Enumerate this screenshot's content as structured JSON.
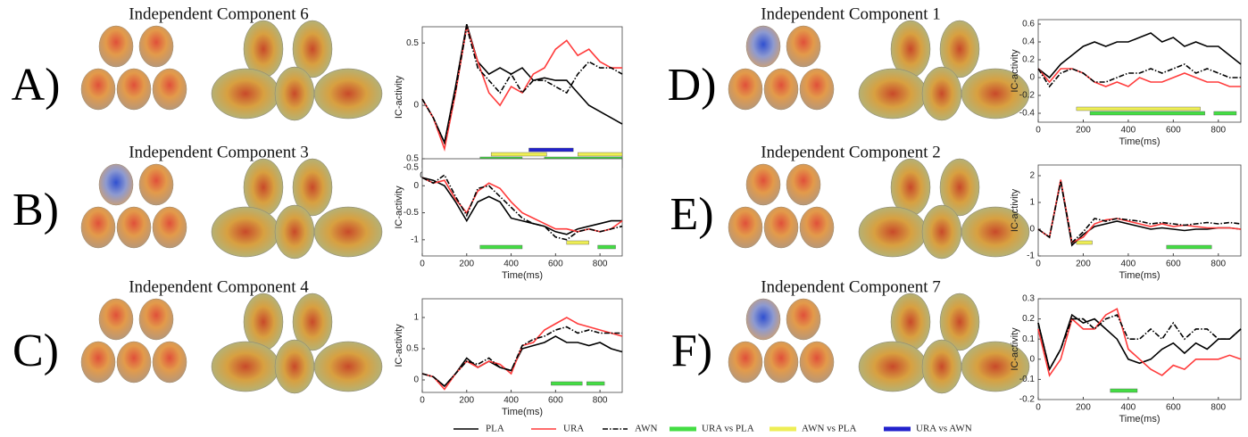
{
  "chart_data": [
    {
      "type": "line",
      "label": "A)",
      "title": "Independent Component 6",
      "xlabel": "Time(ms)",
      "ylabel": "IC-activity",
      "x": [
        0,
        50,
        100,
        150,
        200,
        250,
        300,
        350,
        400,
        450,
        500,
        550,
        600,
        650,
        700,
        750,
        800,
        850,
        900
      ],
      "xlim": [
        0,
        900
      ],
      "xticks": [
        0,
        200,
        400,
        600,
        800
      ],
      "ylim": [
        -0.5,
        0.63
      ],
      "yticks": [
        -0.5,
        0,
        0.5
      ],
      "series": [
        {
          "values": [
            0.05,
            -0.1,
            -0.3,
            0.15,
            0.65,
            0.35,
            0.25,
            0.3,
            0.25,
            0.3,
            0.2,
            0.22,
            0.2,
            0.2,
            0.1,
            0.0,
            -0.05,
            -0.1,
            -0.15
          ]
        },
        {
          "values": [
            0.05,
            -0.1,
            -0.35,
            0.1,
            0.63,
            0.35,
            0.1,
            0.0,
            0.15,
            0.1,
            0.25,
            0.3,
            0.45,
            0.52,
            0.4,
            0.45,
            0.35,
            0.3,
            0.3
          ]
        },
        {
          "values": [
            0.05,
            -0.1,
            -0.3,
            0.12,
            0.63,
            0.3,
            0.2,
            0.1,
            0.25,
            0.1,
            0.2,
            0.2,
            0.15,
            0.1,
            0.25,
            0.35,
            0.3,
            0.3,
            0.25
          ]
        }
      ],
      "intervals": [
        [
          [
            260,
            450
          ],
          [
            550,
            900
          ]
        ],
        [
          [
            310,
            560
          ],
          [
            700,
            900
          ]
        ],
        [
          [
            480,
            680
          ]
        ]
      ]
    },
    {
      "type": "line",
      "label": "B)",
      "title": "Independent Component 3",
      "xlabel": "Time(ms)",
      "ylabel": "IC-activity",
      "x": [
        0,
        50,
        100,
        150,
        200,
        250,
        300,
        350,
        400,
        450,
        500,
        550,
        600,
        650,
        700,
        750,
        800,
        850,
        900
      ],
      "xlim": [
        0,
        900
      ],
      "xticks": [
        0,
        200,
        400,
        600,
        800
      ],
      "ylim": [
        -1.3,
        0.5
      ],
      "yticks": [
        -1,
        -0.5,
        0,
        0.5
      ],
      "series": [
        {
          "values": [
            0.15,
            0.1,
            0.0,
            -0.3,
            -0.65,
            -0.3,
            -0.2,
            -0.3,
            -0.6,
            -0.65,
            -0.7,
            -0.75,
            -0.85,
            -0.9,
            -0.8,
            -0.75,
            -0.7,
            -0.65,
            -0.65
          ]
        },
        {
          "values": [
            0.15,
            0.05,
            0.1,
            -0.25,
            -0.5,
            -0.1,
            0.05,
            -0.05,
            -0.3,
            -0.5,
            -0.6,
            -0.7,
            -0.8,
            -0.8,
            -0.85,
            -0.8,
            -0.85,
            -0.8,
            -0.65
          ]
        },
        {
          "values": [
            0.15,
            0.05,
            0.2,
            -0.2,
            -0.55,
            -0.05,
            0.0,
            -0.2,
            -0.4,
            -0.6,
            -0.7,
            -0.75,
            -0.95,
            -1.0,
            -0.85,
            -0.8,
            -0.85,
            -0.8,
            -0.75
          ]
        }
      ],
      "intervals": [
        [
          [
            260,
            450
          ],
          [
            790,
            870
          ]
        ],
        [
          [
            650,
            750
          ]
        ],
        []
      ]
    },
    {
      "type": "line",
      "label": "C)",
      "title": "Independent Component 4",
      "xlabel": "Time(ms)",
      "ylabel": "IC-activity",
      "x": [
        0,
        50,
        100,
        150,
        200,
        250,
        300,
        350,
        400,
        450,
        500,
        550,
        600,
        650,
        700,
        750,
        800,
        850,
        900
      ],
      "xlim": [
        0,
        900
      ],
      "xticks": [
        0,
        200,
        400,
        600,
        800
      ],
      "ylim": [
        -0.2,
        1.3
      ],
      "yticks": [
        0,
        0.5,
        1
      ],
      "series": [
        {
          "values": [
            0.1,
            0.05,
            -0.1,
            0.1,
            0.35,
            0.2,
            0.3,
            0.2,
            0.15,
            0.5,
            0.55,
            0.6,
            0.7,
            0.6,
            0.6,
            0.55,
            0.6,
            0.5,
            0.45
          ]
        },
        {
          "values": [
            0.1,
            0.05,
            -0.15,
            0.1,
            0.3,
            0.2,
            0.3,
            0.25,
            0.1,
            0.55,
            0.6,
            0.8,
            0.9,
            1.0,
            0.9,
            0.85,
            0.8,
            0.75,
            0.7
          ]
        },
        {
          "values": [
            0.1,
            0.05,
            -0.1,
            0.1,
            0.3,
            0.25,
            0.35,
            0.2,
            0.15,
            0.55,
            0.65,
            0.7,
            0.8,
            0.85,
            0.75,
            0.8,
            0.75,
            0.75,
            0.75
          ]
        }
      ],
      "intervals": [
        [
          [
            580,
            720
          ],
          [
            740,
            820
          ]
        ],
        [],
        []
      ]
    },
    {
      "type": "line",
      "label": "D)",
      "title": "Independent Component 1",
      "xlabel": "Time(ms)",
      "ylabel": "IC-activity",
      "x": [
        0,
        50,
        100,
        150,
        200,
        250,
        300,
        350,
        400,
        450,
        500,
        550,
        600,
        650,
        700,
        750,
        800,
        850,
        900
      ],
      "xlim": [
        0,
        900
      ],
      "xticks": [
        0,
        200,
        400,
        600,
        800
      ],
      "ylim": [
        -0.5,
        0.65
      ],
      "yticks": [
        -0.4,
        -0.2,
        0,
        0.2,
        0.4,
        0.6
      ],
      "series": [
        {
          "values": [
            0.1,
            0.0,
            0.15,
            0.25,
            0.35,
            0.4,
            0.35,
            0.4,
            0.4,
            0.45,
            0.5,
            0.4,
            0.45,
            0.35,
            0.4,
            0.35,
            0.35,
            0.25,
            0.15
          ]
        },
        {
          "values": [
            0.1,
            -0.05,
            0.1,
            0.1,
            0.05,
            -0.05,
            -0.1,
            -0.05,
            -0.1,
            0.0,
            -0.05,
            -0.05,
            0.0,
            0.05,
            0.0,
            -0.05,
            -0.05,
            -0.1,
            -0.1
          ]
        },
        {
          "values": [
            0.1,
            -0.1,
            0.05,
            0.1,
            0.05,
            -0.05,
            -0.05,
            0.0,
            0.05,
            0.05,
            0.1,
            0.05,
            0.1,
            0.15,
            0.05,
            0.1,
            0.05,
            0.0,
            0.0
          ]
        }
      ],
      "intervals": [
        [
          [
            230,
            740
          ],
          [
            780,
            880
          ]
        ],
        [
          [
            170,
            720
          ]
        ],
        []
      ]
    },
    {
      "type": "line",
      "label": "E)",
      "title": "Independent Component 2",
      "xlabel": "Time(ms)",
      "ylabel": "IC-activity",
      "x": [
        0,
        50,
        100,
        150,
        200,
        250,
        300,
        350,
        400,
        450,
        500,
        550,
        600,
        650,
        700,
        750,
        800,
        850,
        900
      ],
      "xlim": [
        0,
        900
      ],
      "xticks": [
        0,
        200,
        400,
        600,
        800
      ],
      "ylim": [
        -1,
        2.4
      ],
      "yticks": [
        -1,
        0,
        1,
        2
      ],
      "series": [
        {
          "values": [
            0,
            -0.3,
            1.8,
            -0.6,
            -0.2,
            0.1,
            0.2,
            0.3,
            0.2,
            0.1,
            0.0,
            0.05,
            0.0,
            -0.05,
            0.0,
            0.0,
            0.05,
            0.05,
            0.0
          ]
        },
        {
          "values": [
            0,
            -0.3,
            1.85,
            -0.5,
            -0.3,
            0.2,
            0.35,
            0.4,
            0.3,
            0.2,
            0.1,
            0.2,
            0.1,
            0.15,
            0.1,
            0.05,
            0.05,
            0.05,
            0.0
          ]
        },
        {
          "values": [
            0,
            -0.3,
            1.8,
            -0.5,
            -0.1,
            0.4,
            0.3,
            0.4,
            0.35,
            0.3,
            0.2,
            0.25,
            0.2,
            0.15,
            0.2,
            0.25,
            0.2,
            0.25,
            0.2
          ]
        }
      ],
      "intervals": [
        [
          [
            570,
            770
          ]
        ],
        [
          [
            170,
            240
          ]
        ],
        []
      ]
    },
    {
      "type": "line",
      "label": "F)",
      "title": "Independent Component 7",
      "xlabel": "Time(ms)",
      "ylabel": "IC-activity",
      "x": [
        0,
        50,
        100,
        150,
        200,
        250,
        300,
        350,
        400,
        450,
        500,
        550,
        600,
        650,
        700,
        750,
        800,
        850,
        900
      ],
      "xlim": [
        0,
        900
      ],
      "xticks": [
        0,
        200,
        400,
        600,
        800
      ],
      "ylim": [
        -0.2,
        0.3
      ],
      "yticks": [
        -0.2,
        -0.1,
        0,
        0.1,
        0.2,
        0.3
      ],
      "series": [
        {
          "values": [
            0.18,
            -0.05,
            0.05,
            0.22,
            0.18,
            0.2,
            0.15,
            0.1,
            0.0,
            -0.02,
            0.0,
            0.05,
            0.08,
            0.03,
            0.08,
            0.05,
            0.1,
            0.1,
            0.15
          ]
        },
        {
          "values": [
            0.15,
            -0.08,
            0.0,
            0.2,
            0.15,
            0.15,
            0.22,
            0.25,
            0.05,
            0.0,
            -0.05,
            -0.08,
            -0.03,
            -0.05,
            0.0,
            0.0,
            0.0,
            0.02,
            0.0
          ]
        },
        {
          "values": [
            0.18,
            -0.05,
            0.05,
            0.2,
            0.2,
            0.15,
            0.2,
            0.22,
            0.1,
            0.1,
            0.15,
            0.1,
            0.18,
            0.1,
            0.15,
            0.15,
            0.1,
            0.1,
            0.15
          ]
        }
      ],
      "intervals": [
        [
          [
            320,
            440
          ]
        ],
        [],
        []
      ]
    }
  ],
  "legend": [
    {
      "name": "PLA",
      "color": "#000000",
      "dash": "solid"
    },
    {
      "name": "URA",
      "color": "#ff3b3b",
      "dash": "solid"
    },
    {
      "name": "AWN",
      "color": "#000000",
      "dash": "dashdot"
    },
    {
      "name": "URA vs PLA",
      "color": "#44dd44"
    },
    {
      "name": "AWN vs PLA",
      "color": "#eeee55"
    },
    {
      "name": "URA vs AWN",
      "color": "#2222cc"
    }
  ]
}
